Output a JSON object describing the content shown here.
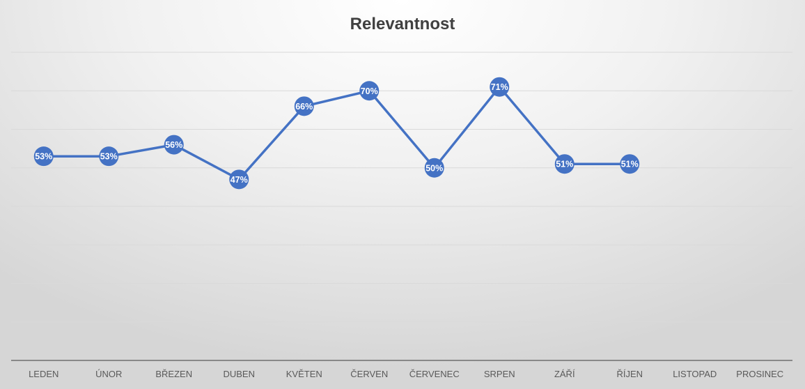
{
  "chart_data": {
    "type": "line",
    "title": "Relevantnost",
    "categories": [
      "LEDEN",
      "ÚNOR",
      "BŘEZEN",
      "DUBEN",
      "KVĚTEN",
      "ČERVEN",
      "ČERVENEC",
      "SRPEN",
      "ZÁŘÍ",
      "ŘÍJEN",
      "LISTOPAD",
      "PROSINEC"
    ],
    "series": [
      {
        "values": [
          0.53,
          0.53,
          0.56,
          0.47,
          0.66,
          0.7,
          0.5,
          0.71,
          0.51,
          0.51,
          null,
          null
        ],
        "data_labels": [
          "53%",
          "53%",
          "56%",
          "47%",
          "66%",
          "70%",
          "50%",
          "71%",
          "51%",
          "51%",
          "",
          ""
        ],
        "color": "#4472C4"
      }
    ],
    "ylim": [
      0,
      0.8
    ],
    "y_gridline_step": 0.1,
    "grid": true,
    "legend": "none",
    "xlabel": "",
    "ylabel": ""
  },
  "colors": {
    "series": "#4472C4",
    "gridline": "#d9d9d9",
    "axis": "#595959",
    "title": "#404040",
    "tick_label": "#595959"
  }
}
